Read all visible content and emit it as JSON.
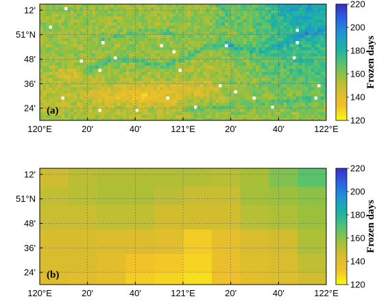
{
  "chart_data": [
    {
      "type": "heatmap",
      "panel_label": "(a)",
      "description_level": "high-resolution",
      "x_ticks": [
        "120°E",
        "20'",
        "40'",
        "121°E",
        "20'",
        "40'",
        "122°E"
      ],
      "x_tick_values": [
        120.0,
        120.3333,
        120.6667,
        121.0,
        121.3333,
        121.6667,
        122.0
      ],
      "y_ticks": [
        "12'",
        "51°N",
        "48'",
        "36'",
        "24'"
      ],
      "y_tick_values": [
        51.2,
        51.0,
        50.8,
        50.6,
        50.4
      ],
      "xlim": [
        120.0,
        122.0
      ],
      "ylim": [
        50.3,
        51.25
      ],
      "colorbar": {
        "label": "Frozen days",
        "ticks": [
          "220",
          "200",
          "180",
          "160",
          "140",
          "120"
        ],
        "range": [
          120,
          220
        ],
        "colors": [
          "#f9fb0e",
          "#f2c02b",
          "#d7bd2e",
          "#9dc03a",
          "#4fc276",
          "#1ab1a5",
          "#1f95d4",
          "#2a63e6",
          "#3c2ec0"
        ]
      },
      "grid": true
    },
    {
      "type": "heatmap",
      "panel_label": "(b)",
      "x_ticks": [
        "120°E",
        "20'",
        "40'",
        "121°E",
        "20'",
        "40'",
        "122°E"
      ],
      "x_tick_values": [
        120.0,
        120.3333,
        120.6667,
        121.0,
        121.3333,
        121.6667,
        122.0
      ],
      "y_ticks": [
        "12'",
        "51°N",
        "48'",
        "36'",
        "24'"
      ],
      "y_tick_values": [
        51.2,
        51.0,
        50.8,
        50.6,
        50.4
      ],
      "xlim": [
        120.0,
        122.0
      ],
      "ylim": [
        50.3,
        51.25
      ],
      "x_edges": [
        120.0,
        120.2,
        120.4,
        120.6,
        120.8,
        121.0,
        121.2,
        121.4,
        121.6,
        121.8,
        122.0
      ],
      "y_edges": [
        51.25,
        51.1,
        50.95,
        50.75,
        50.55,
        50.4,
        50.3
      ],
      "values": [
        [
          147,
          151,
          153,
          153,
          153,
          153,
          152,
          155,
          162,
          168
        ],
        [
          150,
          152,
          154,
          154,
          151,
          148,
          148,
          156,
          158,
          160
        ],
        [
          148,
          148,
          150,
          150,
          146,
          146,
          146,
          152,
          154,
          158
        ],
        [
          145,
          145,
          143,
          143,
          141,
          130,
          138,
          144,
          146,
          154
        ],
        [
          144,
          144,
          140,
          132,
          131,
          128,
          136,
          142,
          144,
          150
        ],
        [
          143,
          141,
          138,
          130,
          128,
          126,
          134,
          140,
          142,
          146
        ]
      ],
      "colorbar": {
        "label": "Frozen days",
        "ticks": [
          "220",
          "200",
          "180",
          "160",
          "140",
          "120"
        ],
        "range": [
          120,
          220
        ],
        "colors": [
          "#f9fb0e",
          "#f2c02b",
          "#d7bd2e",
          "#9dc03a",
          "#4fc276",
          "#1ab1a5",
          "#1f95d4",
          "#2a63e6",
          "#3c2ec0"
        ]
      },
      "grid": true
    }
  ]
}
